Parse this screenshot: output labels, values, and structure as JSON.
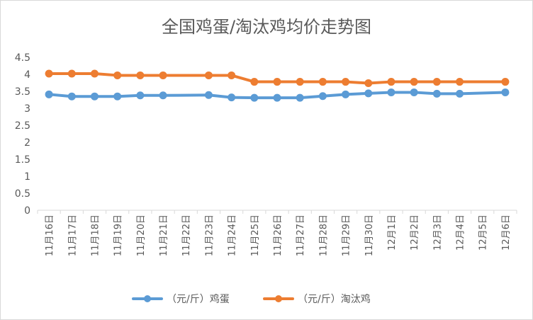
{
  "chart_data": {
    "type": "line",
    "title": "全国鸡蛋/淘汰鸡均价走势图",
    "xlabel": "",
    "ylabel": "",
    "ylim": [
      0,
      4.5
    ],
    "yticks": [
      "0",
      "0.5",
      "1",
      "1.5",
      "2",
      "2.5",
      "3",
      "3.5",
      "4",
      "4.5"
    ],
    "grid": false,
    "legend_position": "bottom",
    "categories": [
      "11月16日",
      "11月17日",
      "11月18日",
      "11月19日",
      "11月20日",
      "11月21日",
      "11月22日",
      "11月23日",
      "11月24日",
      "11月25日",
      "11月26日",
      "11月27日",
      "11月28日",
      "11月29日",
      "11月30日",
      "12月1日",
      "12月2日",
      "12月3日",
      "12月4日",
      "12月5日",
      "12月6日"
    ],
    "series": [
      {
        "name": "（元/斤）鸡蛋",
        "color": "#5b9bd5",
        "values": [
          3.41,
          3.35,
          3.35,
          3.35,
          3.38,
          3.38,
          null,
          3.39,
          3.32,
          3.31,
          3.31,
          3.31,
          3.36,
          3.41,
          3.44,
          3.47,
          3.47,
          3.43,
          3.43,
          null,
          3.47
        ]
      },
      {
        "name": "（元/斤）淘汰鸡",
        "color": "#ed7d31",
        "values": [
          4.02,
          4.02,
          4.02,
          3.97,
          3.97,
          3.97,
          null,
          3.97,
          3.97,
          3.78,
          3.78,
          3.78,
          3.78,
          3.78,
          3.74,
          3.78,
          3.78,
          3.78,
          3.78,
          null,
          3.78
        ]
      }
    ]
  }
}
